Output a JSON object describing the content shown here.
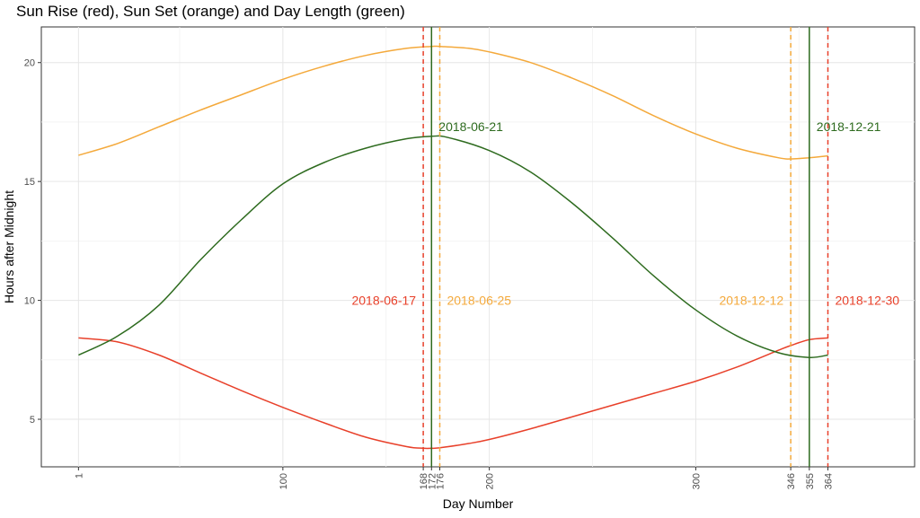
{
  "chart_data": {
    "type": "line",
    "title": "Sun Rise (red), Sun Set (orange) and Day Length (green)",
    "xlabel": "Day Number",
    "ylabel": "Hours after Midnight",
    "xlim": [
      -17,
      406
    ],
    "ylim": [
      3,
      21.5
    ],
    "x_ticks": [
      1,
      100,
      168,
      172,
      176,
      200,
      300,
      346,
      355,
      364
    ],
    "y_ticks": [
      5,
      10,
      15,
      20
    ],
    "grid": true,
    "colors": {
      "sunrise": "#e8402a",
      "sunset": "#f4a93b",
      "day_length": "#2e6b1f"
    },
    "series": [
      {
        "key": "sunrise",
        "x": [
          1,
          20,
          40,
          60,
          80,
          100,
          120,
          140,
          160,
          168,
          172,
          176,
          190,
          200,
          220,
          240,
          260,
          280,
          300,
          320,
          340,
          346,
          355,
          364
        ],
        "values": [
          8.42,
          8.25,
          7.7,
          6.95,
          6.2,
          5.5,
          4.85,
          4.25,
          3.85,
          3.78,
          3.78,
          3.8,
          3.98,
          4.15,
          4.6,
          5.1,
          5.6,
          6.1,
          6.6,
          7.2,
          7.9,
          8.1,
          8.35,
          8.42
        ]
      },
      {
        "key": "sunset",
        "x": [
          1,
          20,
          40,
          60,
          80,
          100,
          120,
          140,
          160,
          172,
          176,
          190,
          200,
          220,
          240,
          260,
          280,
          300,
          320,
          340,
          346,
          355,
          364
        ],
        "values": [
          16.1,
          16.6,
          17.3,
          18.0,
          18.65,
          19.3,
          19.85,
          20.3,
          20.6,
          20.68,
          20.68,
          20.6,
          20.45,
          20.0,
          19.35,
          18.6,
          17.75,
          17.0,
          16.4,
          16.0,
          15.95,
          16.0,
          16.08
        ]
      },
      {
        "key": "day_length",
        "x": [
          1,
          20,
          40,
          60,
          80,
          100,
          120,
          140,
          160,
          172,
          180,
          200,
          220,
          240,
          260,
          280,
          300,
          320,
          340,
          355,
          364
        ],
        "values": [
          7.7,
          8.5,
          9.8,
          11.7,
          13.4,
          14.9,
          15.8,
          16.4,
          16.8,
          16.9,
          16.85,
          16.3,
          15.4,
          14.1,
          12.6,
          11.0,
          9.6,
          8.5,
          7.8,
          7.6,
          7.7
        ]
      }
    ],
    "vlines": [
      {
        "x": 168,
        "label": "2018-06-17",
        "color": "#e8402a",
        "dash": true,
        "label_y": 10,
        "label_side": "left"
      },
      {
        "x": 172,
        "label": "2018-06-21",
        "color": "#2e6b1f",
        "dash": false,
        "label_y": 17.3,
        "label_side": "right"
      },
      {
        "x": 176,
        "label": "2018-06-25",
        "color": "#f4a93b",
        "dash": true,
        "label_y": 10,
        "label_side": "right"
      },
      {
        "x": 346,
        "label": "2018-12-12",
        "color": "#f4a93b",
        "dash": true,
        "label_y": 10,
        "label_side": "left"
      },
      {
        "x": 355,
        "label": "2018-12-21",
        "color": "#2e6b1f",
        "dash": false,
        "label_y": 17.3,
        "label_side": "right"
      },
      {
        "x": 364,
        "label": "2018-12-30",
        "color": "#e8402a",
        "dash": true,
        "label_y": 10,
        "label_side": "right"
      }
    ]
  }
}
